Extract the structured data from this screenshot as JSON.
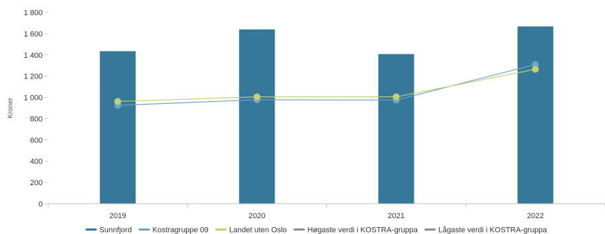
{
  "chart_data": {
    "type": "bar",
    "categories": [
      "2019",
      "2020",
      "2021",
      "2022"
    ],
    "ylabel": "Kroner",
    "ylim": [
      0,
      1800
    ],
    "yticks": [
      0,
      200,
      400,
      600,
      800,
      1000,
      1200,
      1400,
      1600,
      1800
    ],
    "ytick_labels": [
      "0",
      "200",
      "400",
      "600",
      "800",
      "1 000",
      "1 200",
      "1 400",
      "1 600",
      "1 800"
    ],
    "grid": false,
    "legend_position": "bottom",
    "bars": {
      "name": "Sunnfjord",
      "color": "#35789a",
      "values": [
        1435,
        1640,
        1408,
        1668
      ]
    },
    "lines": [
      {
        "name": "Kostragruppe 09",
        "color": "#6aa5c9",
        "values": [
          925,
          978,
          975,
          1310
        ]
      },
      {
        "name": "Landet uten Oslo",
        "color": "#c4cf6f",
        "values": [
          962,
          1005,
          1005,
          1265
        ]
      }
    ],
    "legend": [
      {
        "name": "Sunnfjord",
        "color": "#35789a"
      },
      {
        "name": "Kostragruppe 09",
        "color": "#6aa5c9"
      },
      {
        "name": "Landet uten Oslo",
        "color": "#c4cf6f"
      },
      {
        "name": "Høgaste verdi i KOSTRA-gruppa",
        "color": "#8c8c8c"
      },
      {
        "name": "Lågaste verdi i KOSTRA-gruppa",
        "color": "#8c8c8c"
      }
    ]
  }
}
